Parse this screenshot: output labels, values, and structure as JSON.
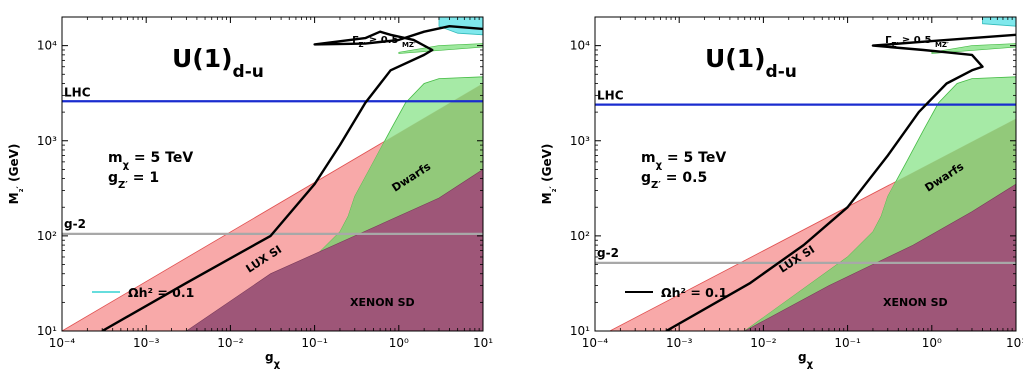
{
  "chart_data": [
    {
      "type": "area",
      "xscale": "log",
      "yscale": "log",
      "xlim": [
        0.0001,
        10
      ],
      "ylim": [
        10,
        20000
      ],
      "xlabel": "gχ",
      "ylabel": "M₂′ (GeV)",
      "x_tick_labels": [
        "10⁻⁴",
        "10⁻³",
        "10⁻²",
        "10⁻¹",
        "10⁰",
        "10¹"
      ],
      "y_tick_labels": [
        "10¹",
        "10²",
        "10³",
        "10⁴"
      ],
      "model_label": "U(1)d-u",
      "param1": "mχ = 5 TeV",
      "param2": "gZ′ = 1",
      "legend_entry": "Ωh² = 0.1",
      "legend_color": "#66dddd",
      "width_label": "ΓZ′ ≥ 0.5 MZ′",
      "lhc": {
        "label": "LHC",
        "y": 2600,
        "color": "#1a2ccf"
      },
      "gm2": {
        "label": "g-2",
        "y": 105,
        "color": "#a8a8a8"
      },
      "regions": {
        "lux_label": "LUX SI",
        "lux_color": "#f8a9a9",
        "dwarfs_label": "Dwarfs",
        "dwarfs_color": "#9ee89e",
        "xenon_label": "XENON SD",
        "xenon_color": "#9e5678"
      },
      "lux_lower_edge": [
        [
          0.0001,
          10
        ],
        [
          10,
          4000
        ]
      ],
      "dwarfs_boundary": [
        [
          0.003,
          10
        ],
        [
          0.1,
          60
        ],
        [
          0.2,
          110
        ],
        [
          0.25,
          160
        ],
        [
          0.3,
          260
        ],
        [
          0.5,
          600
        ],
        [
          0.8,
          1300
        ],
        [
          1.2,
          2500
        ],
        [
          2,
          4000
        ],
        [
          3,
          4500
        ],
        [
          10,
          4700
        ]
      ],
      "dwarfs_band_top": [
        [
          1,
          8500
        ],
        [
          3,
          10000
        ],
        [
          10,
          10500
        ]
      ],
      "xenon_boundary": [
        [
          0.003,
          10
        ],
        [
          0.03,
          40
        ],
        [
          0.3,
          100
        ],
        [
          3,
          250
        ],
        [
          10,
          500
        ]
      ],
      "relic_curve": [
        [
          0.0003,
          10
        ],
        [
          0.003,
          32
        ],
        [
          0.03,
          100
        ],
        [
          0.1,
          350
        ],
        [
          0.2,
          900
        ],
        [
          0.4,
          2500
        ],
        [
          0.8,
          5500
        ],
        [
          2,
          8000
        ],
        [
          2.5,
          9000
        ],
        [
          1.5,
          11500
        ],
        [
          0.8,
          13000
        ],
        [
          0.6,
          14000
        ],
        [
          0.4,
          12000
        ],
        [
          0.1,
          10300
        ],
        [
          0.4,
          10500
        ],
        [
          1,
          11500
        ],
        [
          2,
          14000
        ],
        [
          4,
          16000
        ],
        [
          10,
          15000
        ]
      ],
      "width_region": [
        [
          3,
          20000
        ],
        [
          3,
          16000
        ],
        [
          5,
          13500
        ],
        [
          10,
          13000
        ],
        [
          10,
          20000
        ]
      ]
    },
    {
      "type": "area",
      "xscale": "log",
      "yscale": "log",
      "xlim": [
        0.0001,
        10
      ],
      "ylim": [
        10,
        20000
      ],
      "xlabel": "gχ",
      "ylabel": "M₂′ (GeV)",
      "x_tick_labels": [
        "10⁻⁴",
        "10⁻³",
        "10⁻²",
        "10⁻¹",
        "10⁰",
        "10¹"
      ],
      "y_tick_labels": [
        "10¹",
        "10²",
        "10³",
        "10⁴"
      ],
      "model_label": "U(1)d-u",
      "param1": "mχ = 5 TeV",
      "param2": "gZ′ = 0.5",
      "legend_entry": "Ωh² = 0.1",
      "legend_color": "#000000",
      "width_label": "ΓZ′ ≥ 0.5 MZ′",
      "lhc": {
        "label": "LHC",
        "y": 2400,
        "color": "#1a2ccf"
      },
      "gm2": {
        "label": "g-2",
        "y": 52,
        "color": "#a8a8a8"
      },
      "regions": {
        "lux_label": "LUX SI",
        "lux_color": "#f8a9a9",
        "dwarfs_label": "Dwarfs",
        "dwarfs_color": "#9ee89e",
        "xenon_label": "XENON SD",
        "xenon_color": "#9e5678"
      },
      "lux_lower_edge": [
        [
          0.00015,
          10
        ],
        [
          10,
          1700
        ]
      ],
      "dwarfs_boundary": [
        [
          0.006,
          10
        ],
        [
          0.1,
          60
        ],
        [
          0.2,
          110
        ],
        [
          0.25,
          160
        ],
        [
          0.3,
          260
        ],
        [
          0.5,
          600
        ],
        [
          0.8,
          1300
        ],
        [
          1.2,
          2500
        ],
        [
          2,
          4000
        ],
        [
          3,
          4500
        ],
        [
          10,
          4700
        ]
      ],
      "dwarfs_band_top": [
        [
          1,
          8500
        ],
        [
          3,
          10000
        ],
        [
          10,
          10500
        ]
      ],
      "xenon_boundary": [
        [
          0.006,
          10
        ],
        [
          0.06,
          30
        ],
        [
          0.6,
          80
        ],
        [
          3,
          180
        ],
        [
          10,
          350
        ]
      ],
      "relic_curve": [
        [
          0.0007,
          10
        ],
        [
          0.007,
          32
        ],
        [
          0.03,
          80
        ],
        [
          0.1,
          200
        ],
        [
          0.3,
          700
        ],
        [
          0.7,
          2000
        ],
        [
          1.5,
          4000
        ],
        [
          3,
          5500
        ],
        [
          4,
          6000
        ],
        [
          3,
          8000
        ],
        [
          1.5,
          8500
        ],
        [
          0.8,
          9000
        ],
        [
          0.2,
          10000
        ],
        [
          0.8,
          11000
        ],
        [
          3,
          12000
        ],
        [
          10,
          13000
        ]
      ],
      "width_region": [
        [
          4,
          20000
        ],
        [
          4,
          17000
        ],
        [
          10,
          16000
        ],
        [
          10,
          20000
        ]
      ]
    }
  ]
}
